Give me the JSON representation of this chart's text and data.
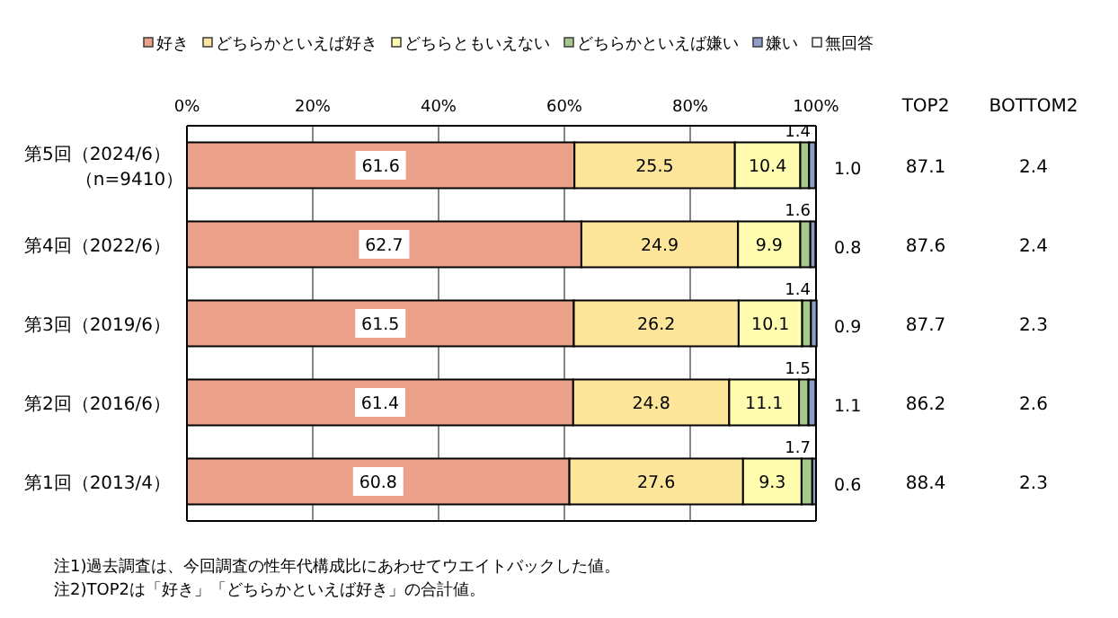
{
  "chart_data": {
    "type": "bar",
    "orientation": "horizontal",
    "stacked": true,
    "legend": "top",
    "grid": "x",
    "categories": [
      "第5回（2024/6）（n=9410）",
      "第4回（2022/6）",
      "第3回（2019/6）",
      "第2回（2016/6）",
      "第1回（2013/4）"
    ],
    "xlim": [
      0,
      100
    ],
    "xticks": [
      {
        "value": 0,
        "label": "0%"
      },
      {
        "value": 20,
        "label": "20%"
      },
      {
        "value": 40,
        "label": "40%"
      },
      {
        "value": 60,
        "label": "60%"
      },
      {
        "value": 80,
        "label": "80%"
      },
      {
        "value": 100,
        "label": "100%"
      }
    ],
    "series": [
      {
        "name": "好き",
        "color": "#eba08a",
        "values": [
          61.6,
          62.7,
          61.5,
          61.4,
          60.8
        ],
        "value_labels": [
          "61.6",
          "62.7",
          "61.5",
          "61.4",
          "60.8"
        ]
      },
      {
        "name": "どちらかといえば好き",
        "color": "#fde699",
        "values": [
          25.5,
          24.9,
          26.2,
          24.8,
          27.6
        ],
        "value_labels": [
          "25.5",
          "24.9",
          "26.2",
          "24.8",
          "27.6"
        ]
      },
      {
        "name": "どちらともいえない",
        "color": "#fffcb0",
        "values": [
          10.4,
          9.9,
          10.1,
          11.1,
          9.3
        ],
        "value_labels": [
          "10.4",
          "9.9",
          "10.1",
          "11.1",
          "9.3"
        ]
      },
      {
        "name": "どちらかといえば嫌い",
        "color": "#a5c98a",
        "values": [
          1.4,
          1.6,
          1.4,
          1.5,
          1.7
        ],
        "value_labels": [
          "1.4",
          "1.6",
          "1.4",
          "1.5",
          "1.7"
        ]
      },
      {
        "name": "嫌い",
        "color": "#8c9dc8",
        "values": [
          1.0,
          0.8,
          0.9,
          1.1,
          0.6
        ],
        "value_labels": [
          "1.0",
          "0.8",
          "0.9",
          "1.1",
          "0.6"
        ]
      },
      {
        "name": "無回答",
        "color": "#ffffff",
        "values": [
          null,
          null,
          null,
          null,
          null
        ]
      }
    ],
    "annotations": [
      "TOP2",
      "87.1",
      "87.6",
      "87.7",
      "86.2",
      "88.4",
      "BOTTOM2",
      "2.4",
      "2.4",
      "2.3",
      "2.6",
      "2.3",
      "注1)過去調査は、今回調査の性年代構成比にあわせてウエイトバックした値。",
      "注2)TOP2は「好き」「どちらかといえば好き」の合計値。"
    ]
  }
}
